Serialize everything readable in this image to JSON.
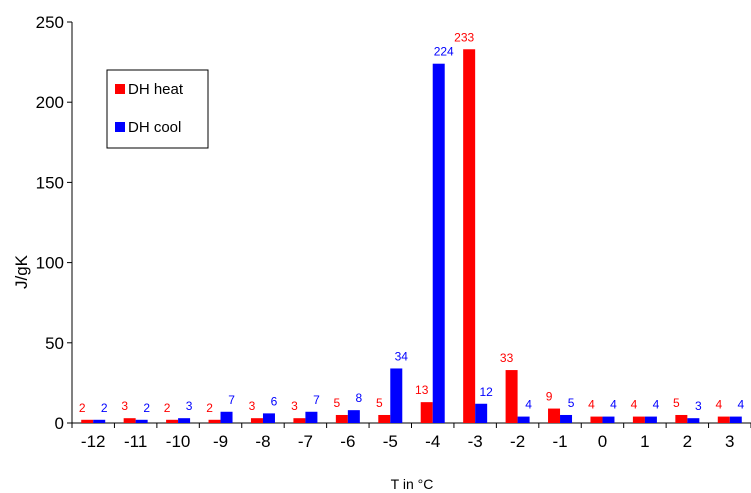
{
  "chart_data": {
    "type": "bar",
    "title": "",
    "xlabel": "T in °C",
    "ylabel": "J/gK",
    "ylim": [
      0,
      250
    ],
    "yticks": [
      0,
      50,
      100,
      150,
      200,
      250
    ],
    "grid": false,
    "legend_position": "top-left",
    "categories": [
      "-12",
      "-11",
      "-10",
      "-9",
      "-8",
      "-7",
      "-6",
      "-5",
      "-4",
      "-3",
      "-2",
      "-1",
      "0",
      "1",
      "2",
      "3"
    ],
    "series": [
      {
        "name": "DH heat",
        "color": "#ff0000",
        "label_color": "#ff0000",
        "values": [
          2,
          3,
          2,
          2,
          3,
          3,
          5,
          5,
          13,
          233,
          33,
          9,
          4,
          4,
          5,
          4
        ],
        "labels": [
          "2",
          "3",
          "2",
          "2",
          "3",
          "3",
          "5",
          "5",
          "13",
          "233",
          "33",
          "9",
          "4",
          "4",
          "5",
          "4"
        ]
      },
      {
        "name": "DH cool",
        "color": "#0000ff",
        "label_color": "#0000ff",
        "values": [
          2,
          2,
          3,
          7,
          6,
          7,
          8,
          34,
          224,
          12,
          4,
          5,
          4,
          4,
          3,
          4
        ],
        "labels": [
          "2",
          "2",
          "3",
          "7",
          "6",
          "7",
          "8",
          "34",
          "224",
          "12",
          "4",
          "5",
          "4",
          "4",
          "3",
          "4"
        ]
      }
    ]
  }
}
